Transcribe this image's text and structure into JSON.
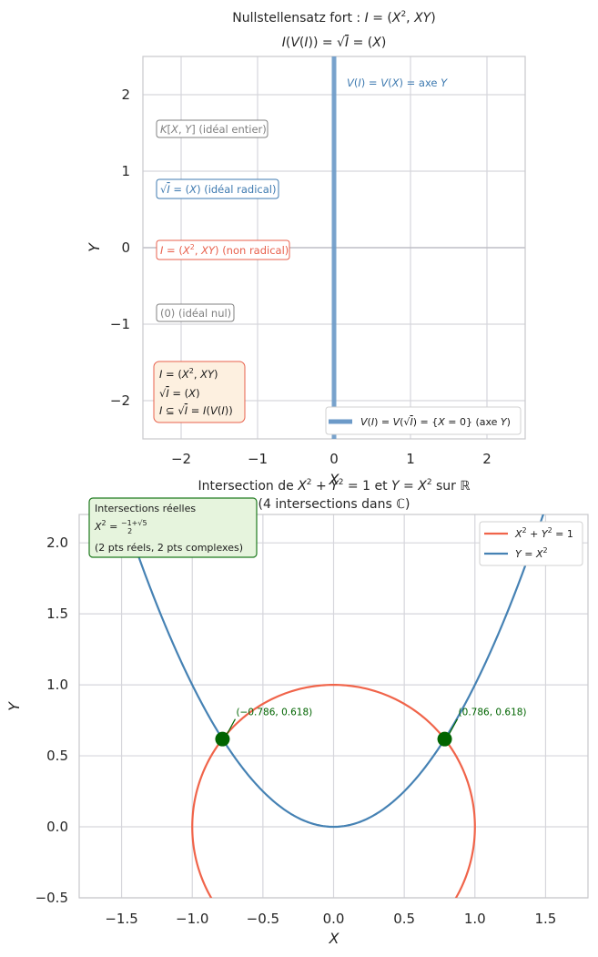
{
  "chart_data": [
    {
      "type": "line",
      "title": [
        "Nullstellensatz fort : I = (X², XY)",
        "I(V(I)) = √I = (X)"
      ],
      "xlabel": "X",
      "ylabel": "Y",
      "xlim": [
        -2.5,
        2.5
      ],
      "ylim": [
        -2.5,
        2.5
      ],
      "xticks": [
        "−2",
        "−1",
        "0",
        "1",
        "2"
      ],
      "yticks": [
        "−2",
        "−1",
        "0",
        "1",
        "2"
      ],
      "grid": true,
      "series": [
        {
          "name": "V(I) = V(√I) = {X = 0} (axe Y)",
          "color": "#6c9ac8",
          "x": [
            0,
            0
          ],
          "y": [
            -2.5,
            2.5
          ]
        }
      ],
      "annotations": [
        {
          "text": "V(I) = V(X) =  axe Y",
          "color": "#3e7ab0",
          "x": 0.15,
          "y": 2.1
        },
        {
          "text": "K[X, Y] (idéal entier)",
          "color": "#808080",
          "x": -2.3,
          "y": 1.55
        },
        {
          "text": "√I = (X) (idéal radical)",
          "color": "#3e7ab0",
          "x": -2.3,
          "y": 0.77
        },
        {
          "text": "I = (X², XY) (non radical)",
          "color": "#e8604c",
          "x": -2.3,
          "y": -0.02
        },
        {
          "text": "(0) (idéal nul)",
          "color": "#808080",
          "x": -2.3,
          "y": -0.85
        }
      ],
      "info_box": [
        "I = (X², XY)",
        "√I = (X)",
        "I ⊆ √I = I(V(I))"
      ],
      "legend_position": "lower right"
    },
    {
      "type": "line",
      "title": [
        "Intersection de X² + Y² = 1 et Y = X² sur ℝ",
        "(4 intersections dans ℂ)"
      ],
      "xlabel": "X",
      "ylabel": "Y",
      "xlim": [
        -1.8,
        1.8
      ],
      "ylim": [
        -0.5,
        2.2
      ],
      "xticks": [
        "−1.5",
        "−1.0",
        "−0.5",
        "0.0",
        "0.5",
        "1.0",
        "1.5"
      ],
      "yticks": [
        "−0.5",
        "0.0",
        "0.5",
        "1.0",
        "1.5",
        "2.0"
      ],
      "grid": true,
      "series": [
        {
          "name": "X² + Y² = 1",
          "color": "#f0644a",
          "equation": "circle radius 1"
        },
        {
          "name": "Y = X²",
          "color": "#4682b4",
          "equation": "parabola y = x^2"
        }
      ],
      "points": [
        {
          "x": -0.786,
          "y": 0.618,
          "label": "(−0.786,  0.618)"
        },
        {
          "x": 0.786,
          "y": 0.618,
          "label": "(0.786,  0.618)"
        }
      ],
      "info_box": [
        "Intersections réelles",
        "X² = (−1+√5)/2",
        "(2 pts réels, 2 pts complexes)"
      ],
      "legend_position": "upper right"
    }
  ],
  "colors": {
    "grid": "#d6d6dc",
    "spine": "#c8c8cc",
    "circle": "#f0644a",
    "parabola": "#4682b4",
    "yaxis_line": "#6c9ac8",
    "points": "#006400",
    "gray": "#808080",
    "red": "#e8604c",
    "blue": "#3e7ab0"
  }
}
